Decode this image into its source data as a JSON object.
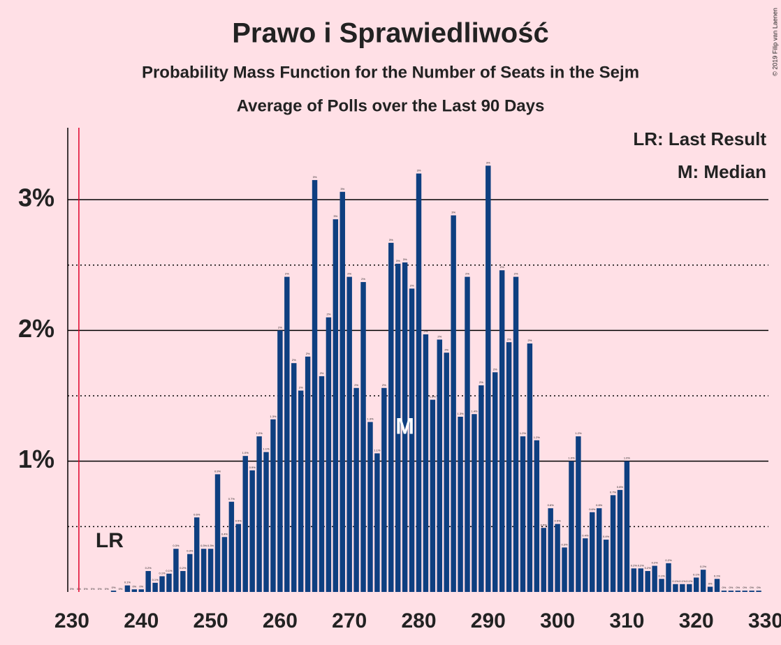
{
  "chart_data": {
    "type": "bar",
    "title": "Prawo i Sprawiedliwość",
    "subtitle": "Probability Mass Function for the Number of Seats in the Sejm",
    "subtitle2": "Average of Polls over the Last 90 Days",
    "copyright": "© 2019 Filip van Laenen",
    "legend": [
      "LR: Last Result",
      "M: Median"
    ],
    "last_result": 231,
    "last_result_label": "LR",
    "median": 278,
    "median_label": "M",
    "color": "#0e3f80",
    "x": [
      230,
      231,
      232,
      233,
      234,
      235,
      236,
      237,
      238,
      239,
      240,
      241,
      242,
      243,
      244,
      245,
      246,
      247,
      248,
      249,
      250,
      251,
      252,
      253,
      254,
      255,
      256,
      257,
      258,
      259,
      260,
      261,
      262,
      263,
      264,
      265,
      266,
      267,
      268,
      269,
      270,
      271,
      272,
      273,
      274,
      275,
      276,
      277,
      278,
      279,
      280,
      281,
      282,
      283,
      284,
      285,
      286,
      287,
      288,
      289,
      290,
      291,
      292,
      293,
      294,
      295,
      296,
      297,
      298,
      299,
      300,
      301,
      302,
      303,
      304,
      305,
      306,
      307,
      308,
      309,
      310,
      311,
      312,
      313,
      314,
      315,
      316,
      317,
      318,
      319,
      320,
      321,
      322,
      323,
      324,
      325,
      326,
      327,
      328,
      329
    ],
    "values": [
      0,
      0,
      0,
      0,
      0,
      0,
      0.01,
      0,
      0.05,
      0.02,
      0.02,
      0.16,
      0.07,
      0.12,
      0.14,
      0.33,
      0.16,
      0.29,
      0.57,
      0.33,
      0.33,
      0.9,
      0.42,
      0.69,
      0.52,
      1.04,
      0.93,
      1.19,
      1.07,
      1.32,
      2.0,
      2.41,
      1.75,
      1.54,
      1.8,
      3.15,
      1.65,
      2.1,
      2.85,
      3.06,
      2.41,
      1.56,
      2.37,
      1.3,
      1.06,
      1.56,
      2.67,
      2.51,
      2.52,
      2.32,
      3.2,
      1.97,
      1.47,
      1.93,
      1.83,
      2.88,
      1.34,
      2.41,
      1.36,
      1.58,
      3.26,
      1.68,
      2.46,
      1.91,
      2.41,
      1.19,
      1.9,
      1.16,
      0.49,
      0.64,
      0.52,
      0.34,
      1.0,
      1.19,
      0.41,
      0.61,
      0.64,
      0.4,
      0.74,
      0.78,
      1.0,
      0.18,
      0.18,
      0.16,
      0.2,
      0.1,
      0.22,
      0.06,
      0.06,
      0.06,
      0.11,
      0.17,
      0.04,
      0.1,
      0.01,
      0.01,
      0.01,
      0.01,
      0.01,
      0.01
    ],
    "value_labels": [
      "0%",
      "0%",
      "0%",
      "0%",
      "0%",
      "0%",
      "0%",
      "0%",
      "0.1%",
      "0%",
      "0%",
      "0.2%",
      "0.1%",
      "0.1%",
      "0.1%",
      "0.3%",
      "0.2%",
      "0.3%",
      "0.6%",
      "0.3%",
      "0.3%",
      "0.9%",
      "0.4%",
      "0.7%",
      "0.5%",
      "1.0%",
      "0.9%",
      "1.2%",
      "1.1%",
      "1.3%",
      "2%",
      "2%",
      "2%",
      "2%",
      "2%",
      "3%",
      "2%",
      "2%",
      "3%",
      "3%",
      "2%",
      "2%",
      "2%",
      "1.3%",
      "1.1%",
      "2%",
      "3%",
      "3%",
      "3%",
      "2%",
      "3%",
      "2%",
      "1.5%",
      "2%",
      "2%",
      "3%",
      "1.3%",
      "2%",
      "1.4%",
      "2%",
      "3%",
      "2%",
      "2%",
      "2%",
      "2%",
      "1.2%",
      "2%",
      "1.2%",
      "0.5%",
      "0.6%",
      "0.5%",
      "0.3%",
      "1.0%",
      "1.2%",
      "0.4%",
      "0.6%",
      "0.6%",
      "0.4%",
      "0.7%",
      "0.8%",
      "1.0%",
      "0.2%",
      "0.2%",
      "0.2%",
      "0.2%",
      "0.1%",
      "0.2%",
      "0.1%",
      "0.1%",
      "0.1%",
      "0.1%",
      "0.2%",
      "0%",
      "0.1%",
      "0%",
      "0%",
      "0%",
      "0%",
      "0%",
      "0%"
    ],
    "xlim": [
      229.4,
      330.4
    ],
    "xticks": [
      230,
      240,
      250,
      260,
      270,
      280,
      290,
      300,
      310,
      320,
      330
    ],
    "ylim": [
      0,
      3.55
    ],
    "yticks": [
      {
        "value": 1,
        "label": "1%"
      },
      {
        "value": 2,
        "label": "2%"
      },
      {
        "value": 3,
        "label": "3%"
      }
    ],
    "minor_yticks": [
      0.5,
      1.5,
      2.5
    ],
    "grid": true
  }
}
